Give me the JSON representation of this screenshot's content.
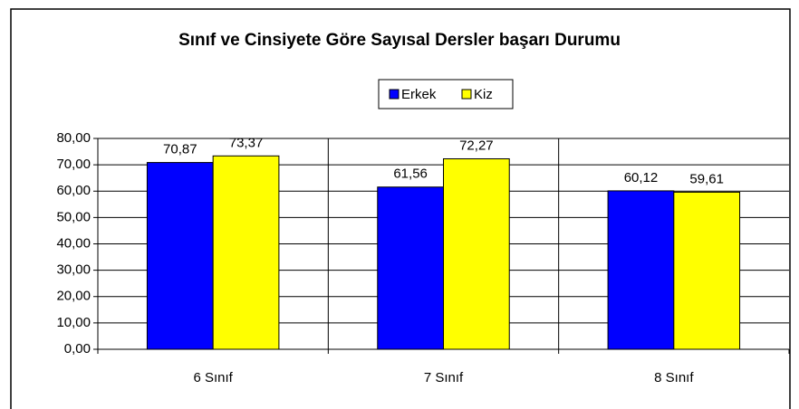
{
  "chart_data": {
    "type": "bar",
    "title": "Sınıf ve Cinsiyete Göre Sayısal Dersler başarı Durumu",
    "categories": [
      "6 Sınıf",
      "7 Sınıf",
      "8 Sınıf"
    ],
    "series": [
      {
        "name": "Erkek",
        "color": "#0000ff",
        "values": [
          70.87,
          61.56,
          60.12
        ],
        "value_labels": [
          "70,87",
          "61,56",
          "60,12"
        ]
      },
      {
        "name": "Kiz",
        "color": "#ffff00",
        "values": [
          73.37,
          72.27,
          59.61
        ],
        "value_labels": [
          "73,37",
          "72,27",
          "59,61"
        ]
      }
    ],
    "ylim": [
      0,
      80
    ],
    "yticks": [
      {
        "value": 0,
        "label": "0,00"
      },
      {
        "value": 10,
        "label": "10,00"
      },
      {
        "value": 20,
        "label": "20,00"
      },
      {
        "value": 30,
        "label": "30,00"
      },
      {
        "value": 40,
        "label": "40,00"
      },
      {
        "value": 50,
        "label": "50,00"
      },
      {
        "value": 60,
        "label": "60,00"
      },
      {
        "value": 70,
        "label": "70,00"
      },
      {
        "value": 80,
        "label": "80,00"
      }
    ],
    "grid": true,
    "legend": "top"
  }
}
